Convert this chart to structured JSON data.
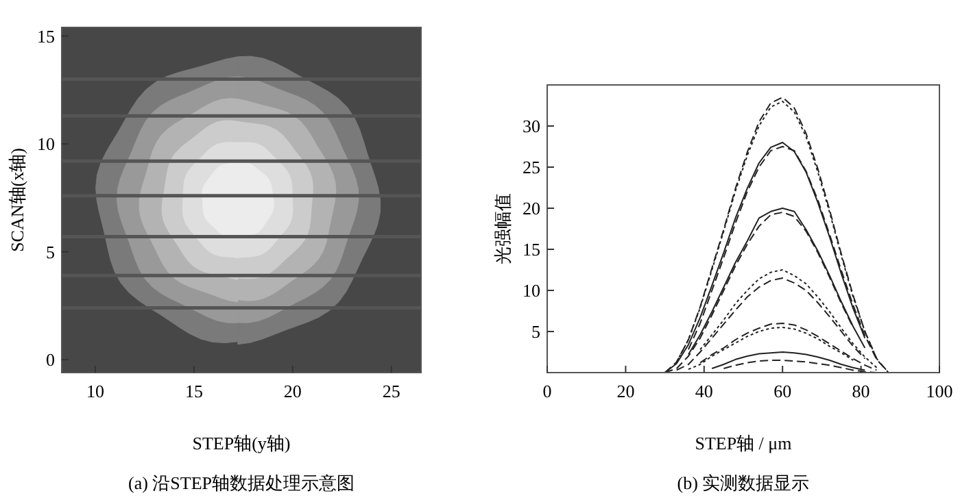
{
  "chart_data": [
    {
      "type": "line",
      "title": "(a) 沿STEP轴数据处理示意图",
      "xlabel": "STEP轴(y轴)",
      "ylabel": "SCAN轴(x轴)",
      "xlim": [
        8.3,
        26.5
      ],
      "ylim": [
        -0.6,
        15.4
      ],
      "xticks": [
        10,
        15,
        20,
        25
      ],
      "yticks": [
        0,
        5,
        10,
        15
      ],
      "x": [
        8.3,
        26.5
      ],
      "series": [
        {
          "color": "#555555",
          "line_style": "solid",
          "values": [
            13.0,
            13.0
          ]
        },
        {
          "color": "#555555",
          "line_style": "solid",
          "values": [
            11.3,
            11.3
          ]
        },
        {
          "color": "#555555",
          "line_style": "solid",
          "values": [
            9.2,
            9.2
          ]
        },
        {
          "color": "#555555",
          "line_style": "solid",
          "values": [
            7.6,
            7.6
          ]
        },
        {
          "color": "#555555",
          "line_style": "solid",
          "values": [
            5.7,
            5.7
          ]
        },
        {
          "color": "#555555",
          "line_style": "solid",
          "values": [
            3.9,
            3.9
          ]
        },
        {
          "color": "#555555",
          "line_style": "solid",
          "values": [
            2.4,
            2.4
          ]
        }
      ]
    },
    {
      "type": "line",
      "title": "(b) 实测数据显示",
      "xlabel": "STEP轴 / μm",
      "ylabel": "光强幅值",
      "xlim": [
        0,
        100
      ],
      "ylim": [
        0,
        35
      ],
      "xticks": [
        0,
        20,
        40,
        60,
        80,
        100
      ],
      "yticks": [
        5,
        10,
        15,
        20,
        25,
        30
      ],
      "x": [
        30,
        33,
        36,
        39,
        42,
        45,
        48,
        51,
        54,
        57,
        60,
        63,
        66,
        69,
        72,
        75,
        78,
        81,
        84,
        87
      ],
      "series": [
        {
          "color": "#222222",
          "line_style": "dashed",
          "values": [
            0,
            1.3,
            4.0,
            8.0,
            12.7,
            17.4,
            22.4,
            26.8,
            30.5,
            32.8,
            33.5,
            32.2,
            29.1,
            24.8,
            19.8,
            14.4,
            9.4,
            5.0,
            1.7,
            0
          ]
        },
        {
          "color": "#222222",
          "line_style": "dotted",
          "values": [
            null,
            1.3,
            4.0,
            7.9,
            12.5,
            17.2,
            22.1,
            26.4,
            30.0,
            32.3,
            33.0,
            31.7,
            28.7,
            24.4,
            19.5,
            14.2,
            9.2,
            5.0,
            1.7,
            null
          ]
        },
        {
          "color": "#222222",
          "line_style": "solid",
          "values": [
            0,
            1.1,
            3.4,
            6.7,
            10.6,
            14.6,
            18.8,
            22.4,
            25.5,
            27.4,
            28.0,
            26.9,
            24.4,
            20.7,
            16.5,
            12.0,
            7.8,
            4.2,
            null,
            null
          ]
        },
        {
          "color": "#222222",
          "line_style": "dashed",
          "values": [
            null,
            null,
            2.8,
            6.0,
            10.0,
            14.0,
            18.2,
            22.0,
            25.0,
            27.0,
            27.5,
            27.0,
            24.5,
            21.0,
            16.8,
            12.4,
            8.2,
            4.5,
            1.6,
            0
          ]
        },
        {
          "color": "#222222",
          "line_style": "solid",
          "values": [
            null,
            null,
            2.2,
            4.6,
            7.4,
            10.4,
            13.4,
            16.0,
            18.8,
            19.6,
            20.0,
            19.6,
            17.4,
            14.8,
            11.8,
            8.6,
            5.6,
            3.0,
            null,
            null
          ]
        },
        {
          "color": "#222222",
          "line_style": "dashed",
          "values": [
            0,
            0.5,
            2.0,
            4.2,
            7.0,
            10.0,
            13.0,
            15.6,
            17.8,
            19.2,
            19.5,
            19.0,
            17.2,
            14.6,
            11.6,
            8.4,
            5.5,
            null,
            null,
            null
          ]
        },
        {
          "color": "#222222",
          "line_style": "dotted",
          "values": [
            null,
            null,
            null,
            2.8,
            4.6,
            6.4,
            8.4,
            10.0,
            11.4,
            12.2,
            12.5,
            11.8,
            10.8,
            9.2,
            7.4,
            5.4,
            3.5,
            1.9,
            0.6,
            null
          ]
        },
        {
          "color": "#222222",
          "line_style": "dashed",
          "values": [
            null,
            0.3,
            1.0,
            2.5,
            4.2,
            5.9,
            7.6,
            9.2,
            10.4,
            11.2,
            11.5,
            10.9,
            10.0,
            8.5,
            6.8,
            5.0,
            3.2,
            1.7,
            null,
            null
          ]
        },
        {
          "color": "#222222",
          "line_style": "dashed",
          "values": [
            null,
            null,
            null,
            1.2,
            2.2,
            3.0,
            4.0,
            4.8,
            5.4,
            5.9,
            6.0,
            5.8,
            5.2,
            4.4,
            3.5,
            2.6,
            1.7,
            0.9,
            0.3,
            null
          ]
        },
        {
          "color": "#222222",
          "line_style": "dotted",
          "values": [
            null,
            null,
            0.4,
            1.0,
            2.0,
            2.8,
            3.6,
            4.4,
            5.0,
            5.4,
            5.5,
            5.3,
            4.8,
            4.1,
            3.2,
            2.4,
            1.5,
            null,
            null,
            null
          ]
        },
        {
          "color": "#222222",
          "line_style": "solid",
          "values": [
            null,
            null,
            null,
            null,
            0.5,
            1.0,
            1.6,
            2.0,
            2.3,
            2.4,
            2.5,
            2.4,
            2.2,
            1.9,
            1.5,
            1.0,
            0.6,
            0.3,
            null,
            null
          ]
        },
        {
          "color": "#222222",
          "line_style": "dashed",
          "values": [
            null,
            null,
            null,
            null,
            null,
            0.5,
            0.9,
            1.2,
            1.4,
            1.5,
            1.5,
            1.4,
            1.3,
            1.1,
            0.9,
            0.6,
            0.3,
            0.1,
            0,
            null
          ]
        }
      ]
    }
  ]
}
